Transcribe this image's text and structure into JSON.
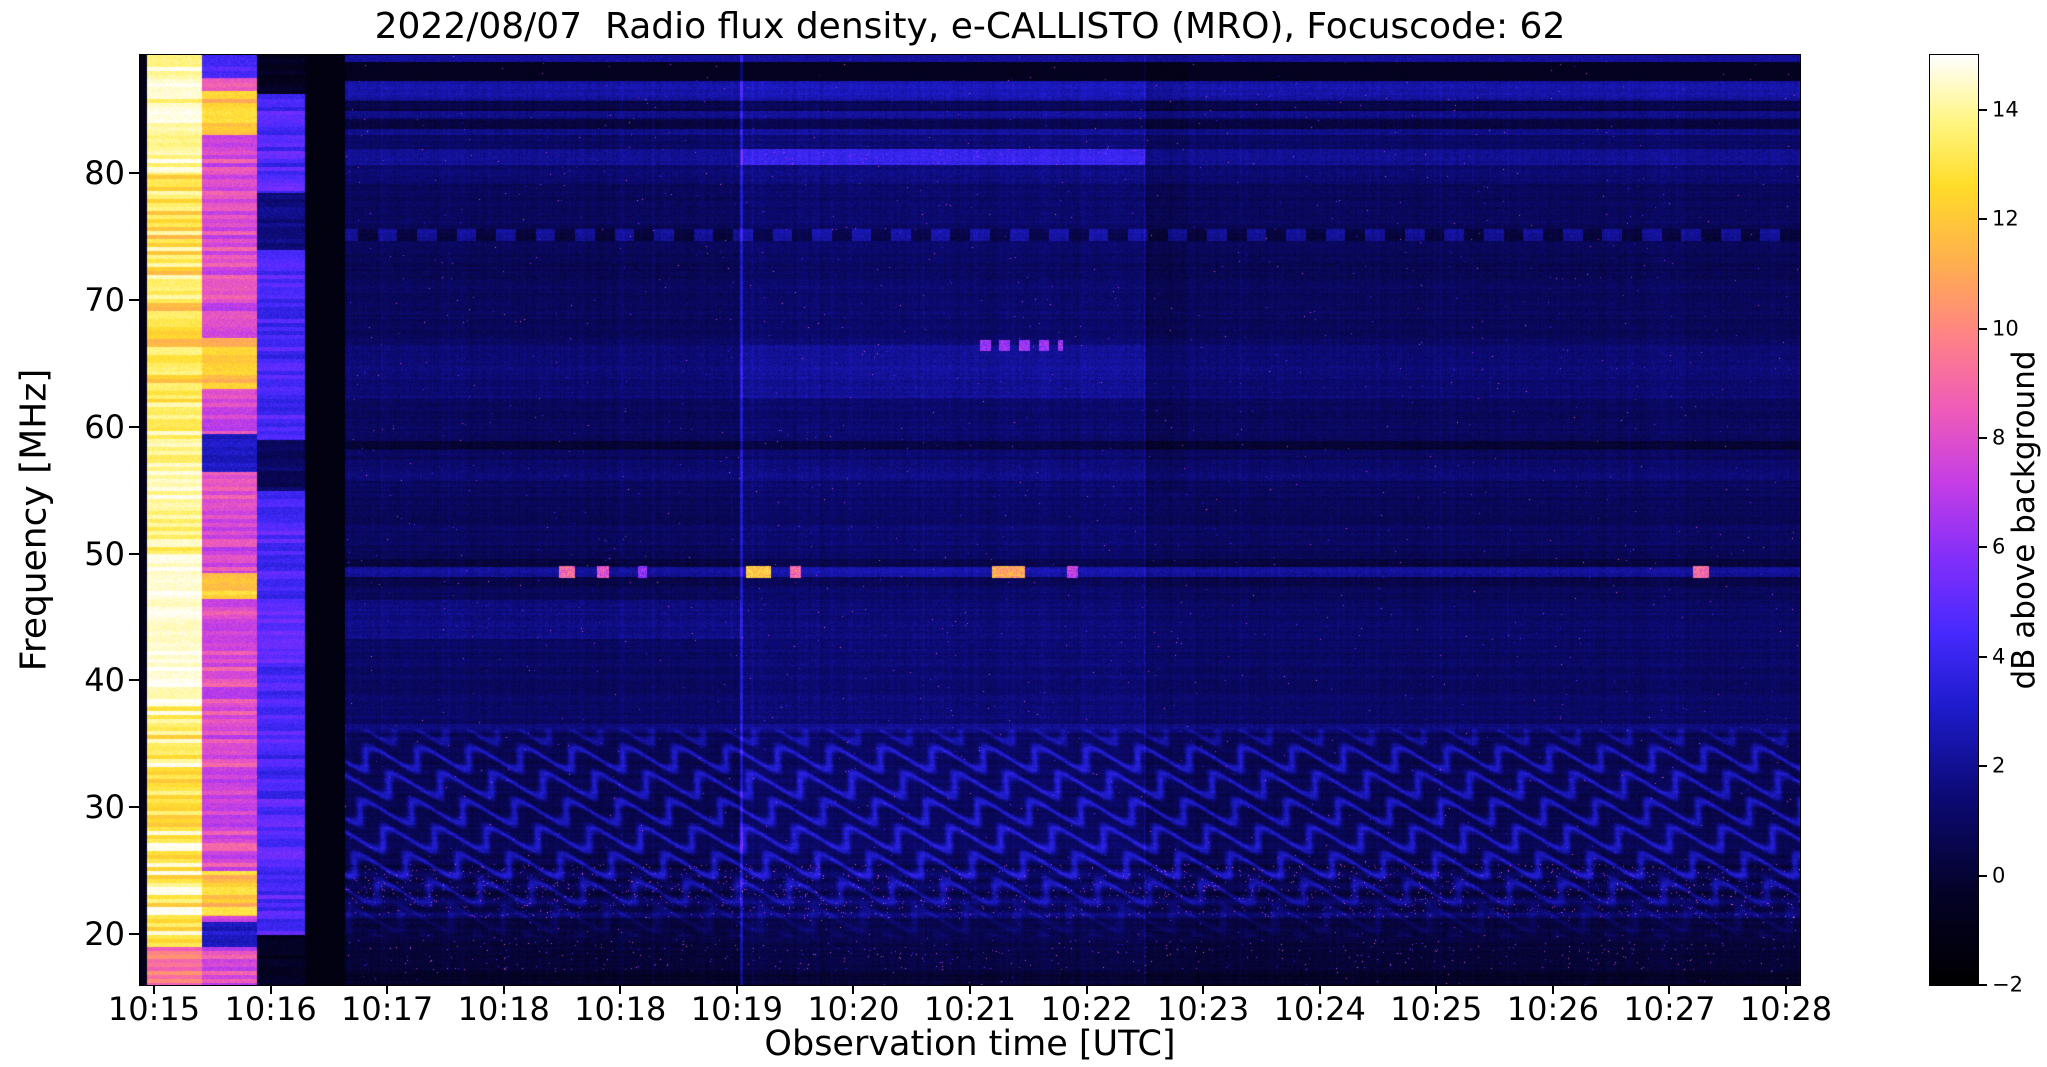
{
  "chart_data": {
    "type": "heatmap",
    "title": "2022/08/07  Radio flux density, e-CALLISTO (MRO), Focuscode: 62",
    "xlabel": "Observation time [UTC]",
    "ylabel": "Frequency [MHz]",
    "x_tick_labels": [
      "10:15",
      "10:16",
      "10:17",
      "10:18",
      "10:18",
      "10:19",
      "10:20",
      "10:21",
      "10:22",
      "10:23",
      "10:24",
      "10:25",
      "10:26",
      "10:27",
      "10:28"
    ],
    "y_tick_values": [
      20,
      30,
      40,
      50,
      60,
      70,
      80
    ],
    "freq_range_mhz": [
      16,
      89.3
    ],
    "colorbar": {
      "label": "dB above background",
      "tick_values": [
        -2,
        0,
        2,
        4,
        6,
        8,
        10,
        12,
        14
      ],
      "vmin": -2,
      "vmax": 15,
      "colormap_stops": [
        [
          0.0,
          [
            0,
            0,
            0
          ]
        ],
        [
          0.1,
          [
            5,
            3,
            40
          ]
        ],
        [
          0.2,
          [
            12,
            10,
            115
          ]
        ],
        [
          0.3,
          [
            30,
            28,
            205
          ]
        ],
        [
          0.38,
          [
            72,
            42,
            255
          ]
        ],
        [
          0.46,
          [
            132,
            47,
            250
          ]
        ],
        [
          0.54,
          [
            197,
            62,
            230
          ]
        ],
        [
          0.62,
          [
            240,
            92,
            185
          ]
        ],
        [
          0.7,
          [
            255,
            132,
            133
          ]
        ],
        [
          0.78,
          [
            255,
            177,
            78
          ]
        ],
        [
          0.86,
          [
            255,
            221,
            41
          ]
        ],
        [
          0.93,
          [
            255,
            246,
            133
          ]
        ],
        [
          1.0,
          [
            255,
            255,
            255
          ]
        ]
      ]
    },
    "features": {
      "seed": 20220807,
      "calibration_columns": {
        "left_black_end": 0.004,
        "saturated_end": 0.037,
        "pink_end": 0.07,
        "purple_end": 0.099,
        "black_gap_end": 0.123
      },
      "segments": {
        "seg2_start": 0.362,
        "seg2_end": 0.605
      },
      "rfi_line_mhz": 48.5,
      "rfi_bursts": [
        {
          "t0": 0.252,
          "t1": 0.262,
          "db": 9
        },
        {
          "t0": 0.275,
          "t1": 0.282,
          "db": 8
        },
        {
          "t0": 0.3,
          "t1": 0.305,
          "db": 6
        },
        {
          "t0": 0.365,
          "t1": 0.38,
          "db": 12
        },
        {
          "t0": 0.391,
          "t1": 0.398,
          "db": 9
        },
        {
          "t0": 0.513,
          "t1": 0.533,
          "db": 11
        },
        {
          "t0": 0.558,
          "t1": 0.565,
          "db": 7
        },
        {
          "t0": 0.935,
          "t1": 0.945,
          "db": 9
        }
      ],
      "dashed_line_66mhz_t": [
        0.505,
        0.556
      ],
      "ionospheric_wave_band_mhz": [
        19.8,
        36.2
      ],
      "speckle_band_mhz": [
        21.3,
        25.6
      ],
      "bright_band_mhz": [
        80.7,
        81.9
      ]
    }
  }
}
